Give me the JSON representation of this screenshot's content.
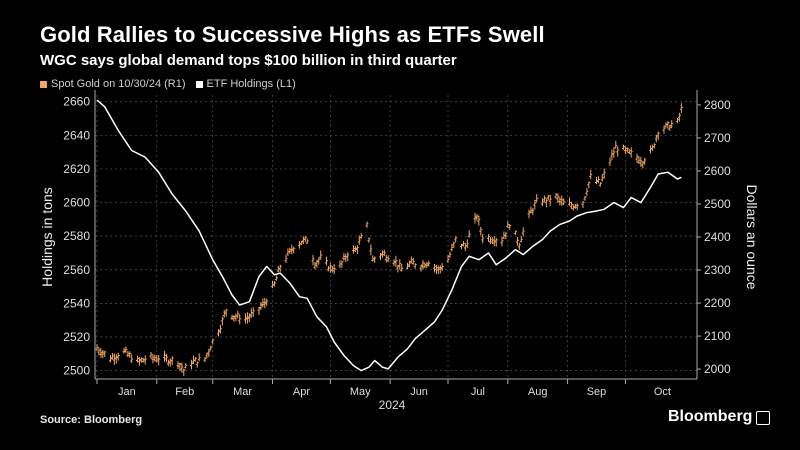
{
  "header": {
    "title": "Gold Rallies to Successive Highs as ETFs Swell",
    "subtitle": "WGC says global demand tops $100 billion in third quarter"
  },
  "footer": {
    "source": "Source: Bloomberg",
    "brand": "Bloomberg"
  },
  "colors": {
    "gold": "#f0a868",
    "etf": "#ffffff",
    "grid": "#555555",
    "background": "#000000"
  },
  "chart_data": {
    "type": "line",
    "year_label": "2024",
    "x_months": [
      "Jan",
      "Feb",
      "Mar",
      "Apr",
      "May",
      "Jun",
      "Jul",
      "Aug",
      "Sep",
      "Oct"
    ],
    "x_range": [
      "2024-01-01",
      "2024-10-30"
    ],
    "left_axis": {
      "label": "Holdings in tons",
      "range": [
        2495,
        2664
      ],
      "ticks": [
        2500,
        2520,
        2540,
        2560,
        2580,
        2600,
        2620,
        2640,
        2660
      ]
    },
    "right_axis": {
      "label": "Dollars an ounce",
      "range": [
        1970,
        2830
      ],
      "ticks": [
        2000,
        2100,
        2200,
        2300,
        2400,
        2500,
        2600,
        2700,
        2800
      ]
    },
    "series": [
      {
        "name": "ETF Holdings (L1)",
        "axis": "left",
        "kind": "line",
        "points": [
          [
            "2024-01-01",
            2661
          ],
          [
            "2024-01-05",
            2657
          ],
          [
            "2024-01-12",
            2643
          ],
          [
            "2024-01-19",
            2631
          ],
          [
            "2024-01-26",
            2627
          ],
          [
            "2024-02-02",
            2618
          ],
          [
            "2024-02-09",
            2605
          ],
          [
            "2024-02-16",
            2595
          ],
          [
            "2024-02-23",
            2583
          ],
          [
            "2024-03-01",
            2566
          ],
          [
            "2024-03-06",
            2556
          ],
          [
            "2024-03-11",
            2545
          ],
          [
            "2024-03-15",
            2539
          ],
          [
            "2024-03-20",
            2541
          ],
          [
            "2024-03-25",
            2556
          ],
          [
            "2024-03-29",
            2562
          ],
          [
            "2024-04-02",
            2557
          ],
          [
            "2024-04-05",
            2558
          ],
          [
            "2024-04-10",
            2552
          ],
          [
            "2024-04-15",
            2544
          ],
          [
            "2024-04-19",
            2543
          ],
          [
            "2024-04-24",
            2532
          ],
          [
            "2024-04-29",
            2526
          ],
          [
            "2024-05-03",
            2517
          ],
          [
            "2024-05-08",
            2509
          ],
          [
            "2024-05-13",
            2503
          ],
          [
            "2024-05-17",
            2500
          ],
          [
            "2024-05-21",
            2502
          ],
          [
            "2024-05-24",
            2506
          ],
          [
            "2024-05-28",
            2502
          ],
          [
            "2024-05-31",
            2501
          ],
          [
            "2024-06-05",
            2508
          ],
          [
            "2024-06-10",
            2513
          ],
          [
            "2024-06-14",
            2519
          ],
          [
            "2024-06-19",
            2524
          ],
          [
            "2024-06-24",
            2529
          ],
          [
            "2024-06-28",
            2536
          ],
          [
            "2024-07-03",
            2548
          ],
          [
            "2024-07-08",
            2562
          ],
          [
            "2024-07-12",
            2568
          ],
          [
            "2024-07-17",
            2566
          ],
          [
            "2024-07-22",
            2570
          ],
          [
            "2024-07-26",
            2563
          ],
          [
            "2024-07-31",
            2567
          ],
          [
            "2024-08-05",
            2572
          ],
          [
            "2024-08-09",
            2569
          ],
          [
            "2024-08-14",
            2574
          ],
          [
            "2024-08-19",
            2578
          ],
          [
            "2024-08-23",
            2583
          ],
          [
            "2024-08-28",
            2587
          ],
          [
            "2024-09-02",
            2589
          ],
          [
            "2024-09-06",
            2592
          ],
          [
            "2024-09-11",
            2594
          ],
          [
            "2024-09-16",
            2595
          ],
          [
            "2024-09-20",
            2596
          ],
          [
            "2024-09-25",
            2600
          ],
          [
            "2024-09-30",
            2597
          ],
          [
            "2024-10-04",
            2603
          ],
          [
            "2024-10-09",
            2600
          ],
          [
            "2024-10-14",
            2609
          ],
          [
            "2024-10-18",
            2617
          ],
          [
            "2024-10-23",
            2618
          ],
          [
            "2024-10-28",
            2614
          ],
          [
            "2024-10-30",
            2615
          ]
        ]
      },
      {
        "name": "Spot Gold on 10/30/24 (R1)",
        "axis": "right",
        "kind": "ohlc",
        "points": [
          [
            "2024-01-01",
            2063
          ],
          [
            "2024-01-08",
            2033
          ],
          [
            "2024-01-15",
            2052
          ],
          [
            "2024-01-22",
            2022
          ],
          [
            "2024-01-29",
            2034
          ],
          [
            "2024-02-05",
            2030
          ],
          [
            "2024-02-12",
            2022
          ],
          [
            "2024-02-15",
            1995
          ],
          [
            "2024-02-19",
            2020
          ],
          [
            "2024-02-26",
            2030
          ],
          [
            "2024-03-01",
            2083
          ],
          [
            "2024-03-05",
            2128
          ],
          [
            "2024-03-08",
            2178
          ],
          [
            "2024-03-12",
            2160
          ],
          [
            "2024-03-18",
            2152
          ],
          [
            "2024-03-22",
            2165
          ],
          [
            "2024-03-28",
            2200
          ],
          [
            "2024-04-02",
            2255
          ],
          [
            "2024-04-05",
            2310
          ],
          [
            "2024-04-09",
            2345
          ],
          [
            "2024-04-12",
            2370
          ],
          [
            "2024-04-16",
            2385
          ],
          [
            "2024-04-19",
            2390
          ],
          [
            "2024-04-23",
            2320
          ],
          [
            "2024-04-26",
            2335
          ],
          [
            "2024-05-01",
            2305
          ],
          [
            "2024-05-06",
            2310
          ],
          [
            "2024-05-10",
            2350
          ],
          [
            "2024-05-14",
            2360
          ],
          [
            "2024-05-20",
            2430
          ],
          [
            "2024-05-23",
            2330
          ],
          [
            "2024-05-28",
            2350
          ],
          [
            "2024-06-03",
            2330
          ],
          [
            "2024-06-07",
            2300
          ],
          [
            "2024-06-12",
            2320
          ],
          [
            "2024-06-17",
            2315
          ],
          [
            "2024-06-21",
            2325
          ],
          [
            "2024-06-26",
            2300
          ],
          [
            "2024-07-01",
            2330
          ],
          [
            "2024-07-05",
            2390
          ],
          [
            "2024-07-10",
            2370
          ],
          [
            "2024-07-16",
            2465
          ],
          [
            "2024-07-19",
            2400
          ],
          [
            "2024-07-24",
            2395
          ],
          [
            "2024-07-29",
            2390
          ],
          [
            "2024-08-02",
            2440
          ],
          [
            "2024-08-07",
            2380
          ],
          [
            "2024-08-12",
            2465
          ],
          [
            "2024-08-16",
            2505
          ],
          [
            "2024-08-20",
            2510
          ],
          [
            "2024-08-26",
            2520
          ],
          [
            "2024-08-30",
            2500
          ],
          [
            "2024-09-04",
            2495
          ],
          [
            "2024-09-09",
            2505
          ],
          [
            "2024-09-13",
            2580
          ],
          [
            "2024-09-18",
            2560
          ],
          [
            "2024-09-23",
            2630
          ],
          [
            "2024-09-26",
            2670
          ],
          [
            "2024-10-01",
            2660
          ],
          [
            "2024-10-04",
            2650
          ],
          [
            "2024-10-10",
            2630
          ],
          [
            "2024-10-15",
            2665
          ],
          [
            "2024-10-18",
            2720
          ],
          [
            "2024-10-23",
            2735
          ],
          [
            "2024-10-28",
            2745
          ],
          [
            "2024-10-30",
            2785
          ]
        ]
      }
    ]
  }
}
